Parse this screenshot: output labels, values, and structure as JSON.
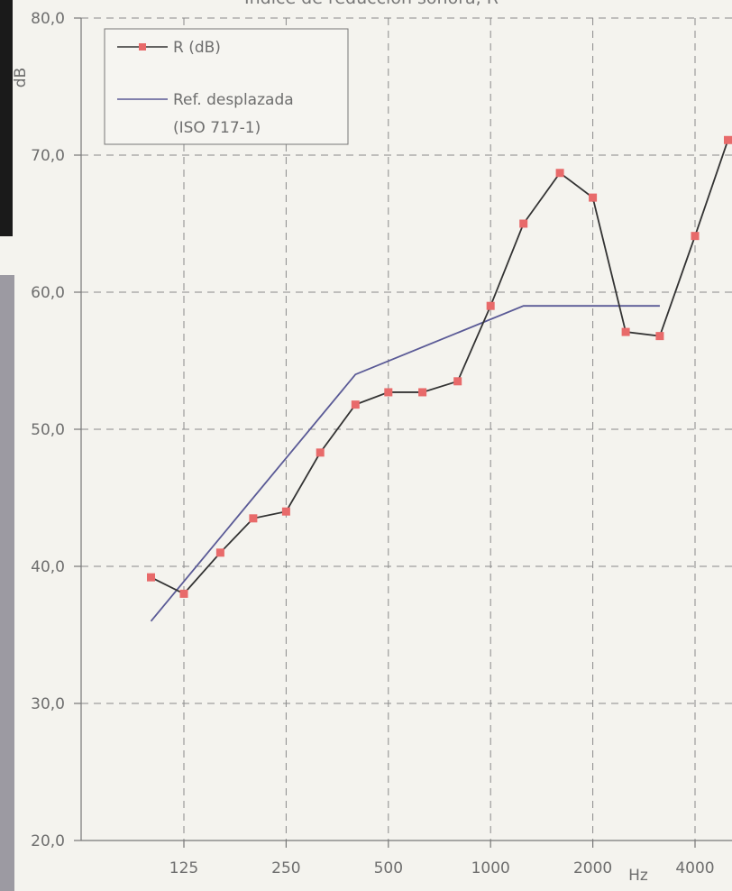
{
  "chart_data": {
    "type": "line",
    "title": "Índice de reducción sonora, R",
    "ylabel": "dB",
    "xlabel": "Hz",
    "ylim": [
      20,
      80
    ],
    "y_ticks": [
      "20,0",
      "30,0",
      "40,0",
      "50,0",
      "60,0",
      "70,0",
      "80,0"
    ],
    "y_tick_values": [
      20,
      30,
      40,
      50,
      60,
      70,
      80
    ],
    "x_ticks": [
      "125",
      "250",
      "500",
      "1000",
      "2000",
      "4000"
    ],
    "x_tick_values": [
      125,
      250,
      500,
      1000,
      2000,
      4000
    ],
    "grid": true,
    "legend_position": "top-left",
    "series": [
      {
        "name": "R (dB)",
        "color": "#333333",
        "marker_color": "#e86a6a",
        "x": [
          100,
          125,
          160,
          200,
          250,
          315,
          400,
          500,
          630,
          800,
          1000,
          1250,
          1600,
          2000,
          2500,
          3150,
          4000,
          5000
        ],
        "y": [
          39.2,
          38.0,
          41.0,
          43.5,
          44.0,
          48.3,
          51.8,
          52.7,
          52.7,
          53.5,
          59.0,
          65.0,
          68.7,
          66.9,
          57.1,
          56.8,
          64.1,
          71.1
        ]
      },
      {
        "name": "Ref. desplazada",
        "name_line2": "(ISO 717-1)",
        "color": "#5a5a96",
        "x": [
          100,
          400,
          1250,
          3150
        ],
        "y": [
          36.0,
          54.0,
          59.0,
          59.0
        ]
      }
    ]
  }
}
